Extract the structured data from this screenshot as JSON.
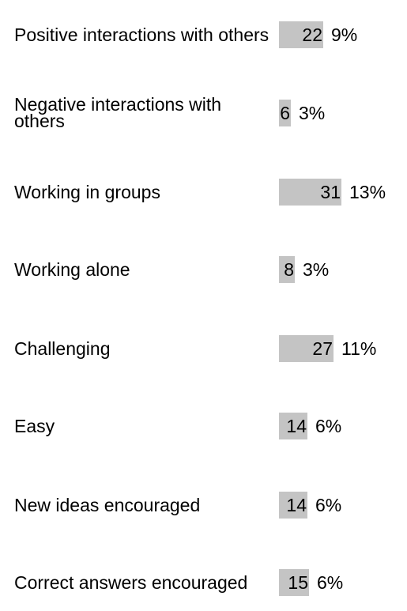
{
  "chart_data": {
    "type": "bar",
    "orientation": "horizontal",
    "categories": [
      "Positive interactions with others",
      "Negative interactions with others",
      "Working in groups",
      "Working alone",
      "Challenging",
      "Easy",
      "New ideas encouraged",
      "Correct answers encouraged"
    ],
    "values": [
      22,
      6,
      31,
      8,
      27,
      14,
      14,
      15
    ],
    "percent_labels": [
      "9%",
      "3%",
      "13%",
      "3%",
      "11%",
      "6%",
      "6%",
      "6%"
    ],
    "title": "",
    "xlabel": "",
    "ylabel": "",
    "grid": false,
    "bar_color": "#c4c4c4"
  }
}
